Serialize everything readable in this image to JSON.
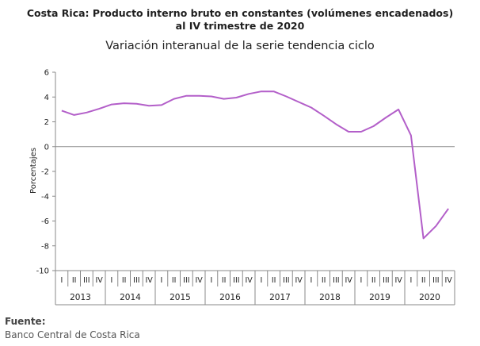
{
  "header": {
    "title_line1": "Costa Rica: Producto interno bruto en constantes (volúmenes encadenados)",
    "title_line2": "al IV trimestre de 2020",
    "subtitle": "Variación interanual de la serie tendencia ciclo"
  },
  "footer": {
    "source_label": "Fuente:",
    "source_text": "Banco Central de Costa Rica"
  },
  "chart_data": {
    "type": "line",
    "title": "Variación interanual de la serie tendencia ciclo",
    "ylabel": "Porcentajes",
    "xlabel": "",
    "ylim": [
      -10,
      6
    ],
    "yticks": [
      -10,
      -8,
      -6,
      -4,
      -2,
      0,
      2,
      4,
      6
    ],
    "quarters": [
      "I",
      "II",
      "III",
      "IV"
    ],
    "years": [
      "2013",
      "2014",
      "2015",
      "2016",
      "2017",
      "2018",
      "2019",
      "2020"
    ],
    "line_color": "#b35fc9",
    "grid": false,
    "series": [
      {
        "values": [
          2.9,
          2.55,
          2.75,
          3.05,
          3.4,
          3.5,
          3.45,
          3.3,
          3.35,
          3.85,
          4.1,
          4.1,
          4.05,
          3.85,
          3.95,
          4.25,
          4.45,
          4.45,
          4.05,
          3.6,
          3.15,
          2.5,
          1.8,
          1.2,
          1.2,
          1.65,
          2.35,
          3.0,
          0.9,
          -7.4,
          -6.4,
          -5.0
        ]
      }
    ]
  }
}
